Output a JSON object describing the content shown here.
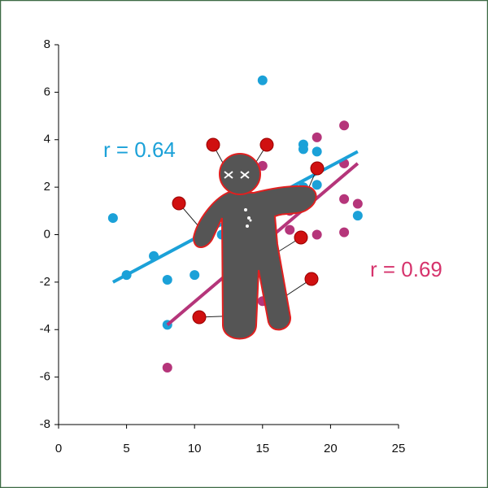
{
  "chart_data": {
    "type": "scatter",
    "xlim": [
      0,
      25
    ],
    "xticks": [
      0,
      5,
      10,
      15,
      20,
      25
    ],
    "ylim": [
      -8,
      8
    ],
    "yticks": [
      -8,
      -6,
      -4,
      -2,
      0,
      2,
      4,
      6,
      8
    ],
    "series": [
      {
        "color": "#1ba1d8",
        "x": [
          4,
          5,
          7,
          8,
          8,
          10,
          12,
          15,
          18,
          18,
          19,
          18,
          19,
          22
        ],
        "y": [
          0.7,
          -1.7,
          -0.9,
          -1.9,
          -3.8,
          -1.7,
          0,
          6.5,
          3.8,
          3.6,
          3.5,
          2,
          2.1,
          0.8
        ]
      },
      {
        "color": "#b5357a",
        "x": [
          8,
          15,
          15,
          17,
          17,
          19,
          19,
          21,
          21,
          21,
          21,
          22
        ],
        "y": [
          -5.6,
          -2.8,
          2.9,
          1,
          0.2,
          4.1,
          0,
          4.6,
          3,
          1.5,
          0.1,
          1.3
        ]
      }
    ],
    "trendlines": [
      {
        "color": "#1ba1d8",
        "x": [
          4,
          22
        ],
        "y": [
          -2,
          3.5
        ]
      },
      {
        "color": "#b5357a",
        "x": [
          8,
          22
        ],
        "y": [
          -3.8,
          3
        ]
      }
    ],
    "annotations": [
      {
        "text": "r = 0.64",
        "color": "#1ba1d8"
      },
      {
        "text": "r = 0.69",
        "color": "#d6336c"
      }
    ]
  }
}
